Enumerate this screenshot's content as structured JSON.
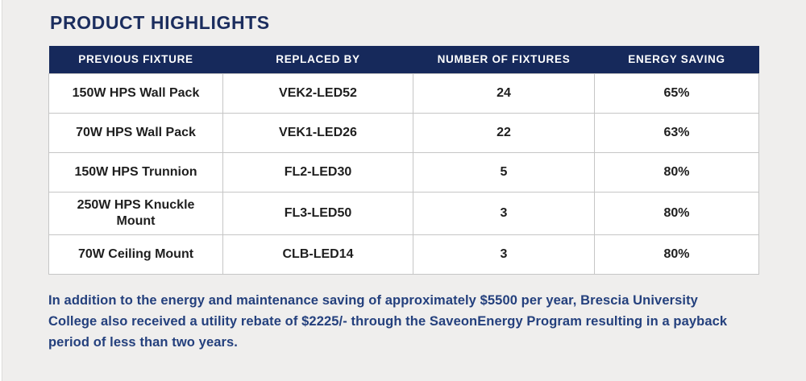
{
  "page": {
    "title": "PRODUCT HIGHLIGHTS",
    "background_color": "#efeeed",
    "header_navy": "#16295b",
    "title_color": "#1b2d5e",
    "note_color": "#24407d"
  },
  "table": {
    "headers": [
      "PREVIOUS FIXTURE",
      "REPLACED BY",
      "NUMBER OF FIXTURES",
      "ENERGY SAVING"
    ],
    "rows": [
      [
        "150W HPS Wall Pack",
        "VEK2-LED52",
        "24",
        "65%"
      ],
      [
        "70W HPS Wall Pack",
        "VEK1-LED26",
        "22",
        "63%"
      ],
      [
        "150W HPS Trunnion",
        "FL2-LED30",
        "5",
        "80%"
      ],
      [
        "250W HPS Knuckle Mount",
        "FL3-LED50",
        "3",
        "80%"
      ],
      [
        "70W Ceiling Mount",
        "CLB-LED14",
        "3",
        "80%"
      ]
    ]
  },
  "footer": {
    "note": "In addition to the energy and maintenance saving of approximately $5500 per year, Brescia University College also received a utility rebate of $2225/- through the SaveonEnergy Program resulting in a payback period of less than two years."
  }
}
